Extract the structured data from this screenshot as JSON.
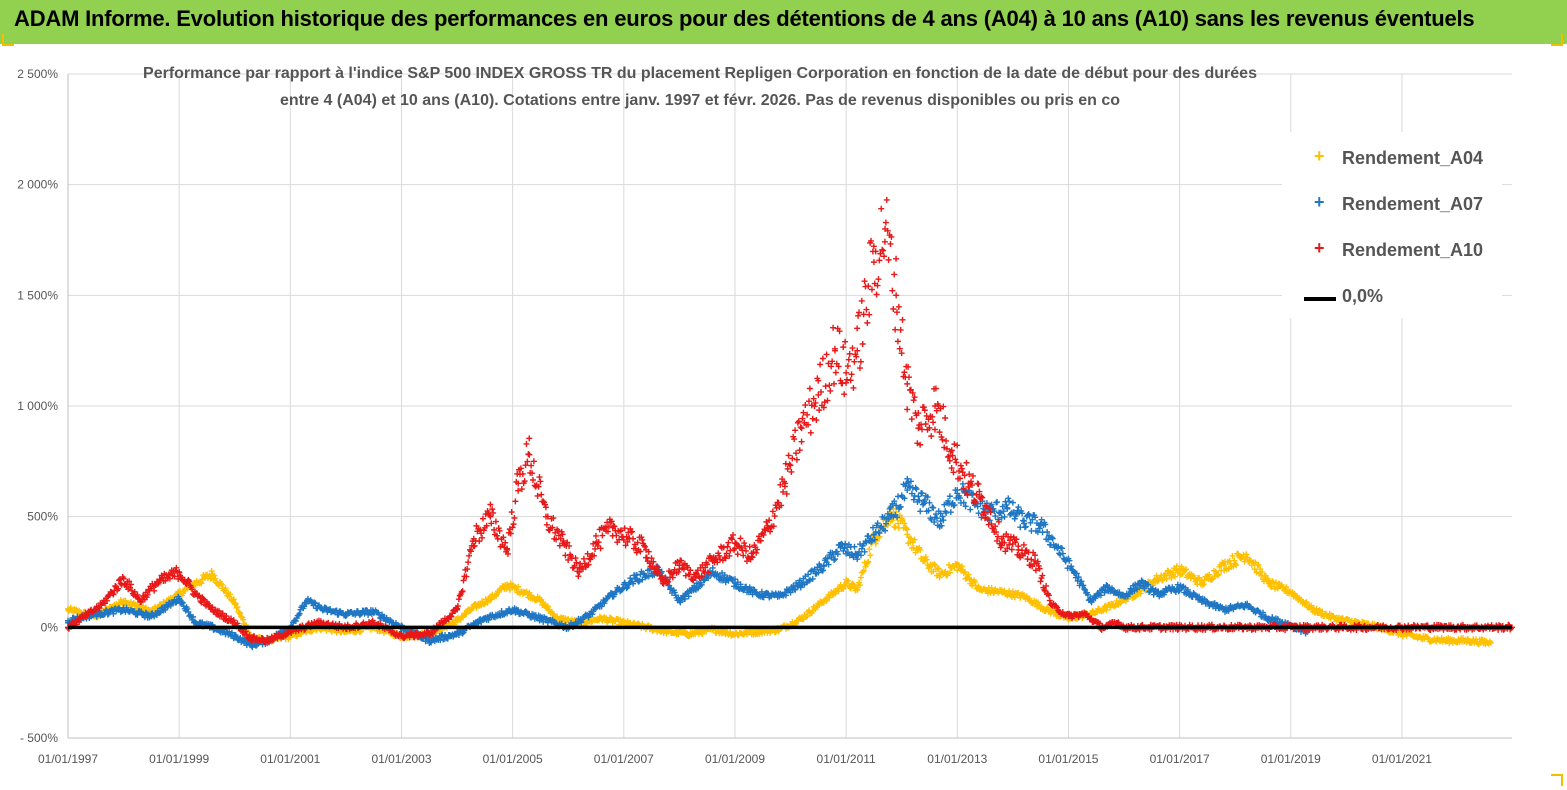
{
  "header": {
    "title": "ADAM Informe. Evolution historique des performances en euros pour des détentions de 4 ans (A04) à 10 ans (A10) sans les revenus éventuels"
  },
  "chart_data": {
    "type": "scatter",
    "title_line1": "Performance par rapport à l'indice S&P 500 INDEX GROSS TR  du placement Repligen Corporation en fonction de la date de début pour des durées",
    "title_line2": "entre 4 (A04) et 10 ans (A10).  Cotations entre janv. 1997 et févr. 2026. Pas de revenus disponibles ou pris en co",
    "xlabel": "",
    "ylabel": "",
    "ylim": [
      -500,
      2500
    ],
    "xlim": [
      1997.0,
      2022.98
    ],
    "y_ticks": [
      -500,
      0,
      500,
      1000,
      1500,
      2000,
      2500
    ],
    "y_tick_labels": [
      "- 500%",
      "0%",
      "500%",
      "1 000%",
      "1 500%",
      "2 000%",
      "2 500%"
    ],
    "x_ticks": [
      1997,
      1999,
      2001,
      2003,
      2005,
      2007,
      2009,
      2011,
      2013,
      2015,
      2017,
      2019,
      2021
    ],
    "x_tick_labels": [
      "01/01/1997",
      "01/01/1999",
      "01/01/2001",
      "01/01/2003",
      "01/01/2005",
      "01/01/2007",
      "01/01/2009",
      "01/01/2011",
      "01/01/2013",
      "01/01/2015",
      "01/01/2017",
      "01/01/2019",
      "01/01/2021"
    ],
    "legend_position": "top-right",
    "series": [
      {
        "name": "Rendement_A04",
        "color": "#ffc000",
        "marker": "+",
        "x": [
          1997.0,
          1997.5,
          1998.0,
          1998.5,
          1999.0,
          1999.3,
          1999.6,
          2000.0,
          2000.3,
          2000.6,
          2001.0,
          2001.5,
          2002.0,
          2002.5,
          2003.0,
          2003.5,
          2004.0,
          2004.3,
          2004.6,
          2004.9,
          2005.2,
          2005.5,
          2005.8,
          2006.2,
          2006.6,
          2007.0,
          2007.4,
          2007.8,
          2008.2,
          2008.6,
          2009.0,
          2009.4,
          2009.8,
          2010.2,
          2010.6,
          2011.0,
          2011.2,
          2011.5,
          2011.8,
          2012.1,
          2012.4,
          2012.7,
          2013.0,
          2013.4,
          2013.8,
          2014.2,
          2014.6,
          2015.0,
          2015.4,
          2015.8,
          2016.2,
          2016.6,
          2017.0,
          2017.4,
          2017.8,
          2018.2,
          2018.6,
          2019.0,
          2019.4,
          2019.8,
          2020.2,
          2020.6,
          2021.0,
          2021.4,
          2021.8,
          2022.2,
          2022.6
        ],
        "y": [
          80,
          50,
          120,
          70,
          150,
          200,
          240,
          110,
          -50,
          -60,
          -40,
          0,
          -20,
          0,
          -40,
          -30,
          30,
          90,
          130,
          190,
          160,
          120,
          40,
          20,
          40,
          20,
          0,
          -20,
          -30,
          -10,
          -30,
          -20,
          -10,
          40,
          120,
          200,
          170,
          400,
          520,
          420,
          300,
          240,
          280,
          170,
          160,
          140,
          80,
          40,
          60,
          100,
          150,
          220,
          260,
          200,
          280,
          330,
          200,
          160,
          80,
          40,
          20,
          0,
          -30,
          -50,
          -60,
          -60,
          -70
        ]
      },
      {
        "name": "Rendement_A07",
        "color": "#1f77c4",
        "marker": "+",
        "x": [
          1997.0,
          1997.5,
          1998.0,
          1998.5,
          1999.0,
          1999.3,
          1999.6,
          2000.0,
          2000.3,
          2000.6,
          2001.0,
          2001.3,
          2001.6,
          2002.0,
          2002.5,
          2003.0,
          2003.5,
          2004.0,
          2004.5,
          2005.0,
          2005.5,
          2006.0,
          2006.4,
          2006.8,
          2007.2,
          2007.6,
          2008.0,
          2008.3,
          2008.6,
          2009.0,
          2009.4,
          2009.8,
          2010.2,
          2010.6,
          2010.9,
          2011.2,
          2011.5,
          2011.8,
          2012.1,
          2012.4,
          2012.7,
          2013.0,
          2013.3,
          2013.6,
          2013.9,
          2014.2,
          2014.5,
          2014.8,
          2015.1,
          2015.4,
          2015.7,
          2016.0,
          2016.3,
          2016.6,
          2017.0,
          2017.4,
          2017.8,
          2018.2,
          2018.6,
          2019.0,
          2019.3
        ],
        "y": [
          30,
          60,
          80,
          50,
          130,
          20,
          0,
          -40,
          -80,
          -60,
          0,
          120,
          80,
          60,
          70,
          0,
          -60,
          -30,
          40,
          80,
          40,
          0,
          60,
          150,
          220,
          260,
          120,
          180,
          250,
          200,
          150,
          140,
          200,
          280,
          360,
          330,
          420,
          500,
          620,
          560,
          480,
          620,
          560,
          520,
          540,
          480,
          460,
          360,
          250,
          120,
          180,
          140,
          200,
          150,
          180,
          120,
          80,
          100,
          40,
          10,
          -20
        ]
      },
      {
        "name": "Rendement_A10",
        "color": "#e81818",
        "marker": "+",
        "x": [
          1997.0,
          1997.3,
          1997.6,
          1998.0,
          1998.3,
          1998.6,
          1999.0,
          1999.3,
          1999.6,
          2000.0,
          2000.3,
          2000.6,
          2001.0,
          2001.5,
          2002.0,
          2002.5,
          2003.0,
          2003.5,
          2004.0,
          2004.3,
          2004.6,
          2004.9,
          2005.1,
          2005.3,
          2005.6,
          2005.9,
          2006.2,
          2006.5,
          2006.8,
          2007.1,
          2007.4,
          2007.7,
          2008.0,
          2008.3,
          2008.6,
          2009.0,
          2009.3,
          2009.6,
          2009.9,
          2010.2,
          2010.5,
          2010.8,
          2011.0,
          2011.2,
          2011.5,
          2011.7,
          2011.9,
          2012.1,
          2012.3,
          2012.6,
          2012.9,
          2013.2,
          2013.5,
          2013.8,
          2014.1,
          2014.4,
          2014.7,
          2015.0,
          2015.3,
          2015.6,
          2015.9,
          2016.0,
          2016.5,
          2017.0,
          2018.0,
          2019.0,
          2020.0,
          2021.0,
          2022.0,
          2022.98
        ],
        "y": [
          0,
          50,
          100,
          220,
          120,
          200,
          250,
          150,
          80,
          20,
          -50,
          -60,
          -20,
          20,
          0,
          20,
          -40,
          -30,
          80,
          400,
          500,
          350,
          650,
          780,
          500,
          380,
          250,
          380,
          450,
          400,
          350,
          200,
          280,
          230,
          300,
          380,
          320,
          450,
          650,
          900,
          1050,
          1250,
          1150,
          1250,
          1650,
          1800,
          1500,
          1100,
          900,
          1000,
          800,
          650,
          550,
          400,
          350,
          300,
          100,
          50,
          60,
          0,
          20,
          0,
          0,
          0,
          0,
          0,
          0,
          0,
          0,
          0
        ]
      },
      {
        "name": "0,0%",
        "color": "#000000",
        "marker": "line",
        "x": [
          1997.0,
          2022.98
        ],
        "y": [
          0,
          0
        ]
      }
    ]
  }
}
